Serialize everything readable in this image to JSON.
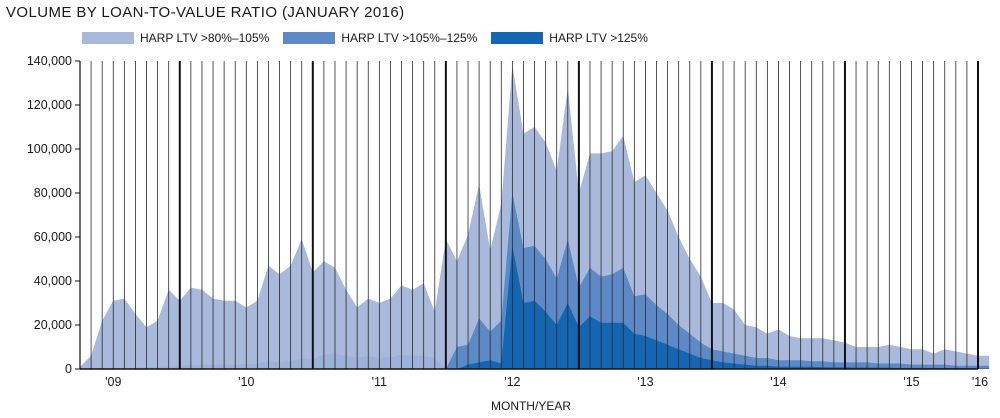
{
  "chart_data": {
    "type": "area",
    "title": "VOLUME BY LOAN-TO-VALUE RATIO (JANUARY 2016)",
    "xlabel": "MONTH/YEAR",
    "ylabel": "",
    "ylim": [
      0,
      140000
    ],
    "yticks": [
      0,
      20000,
      40000,
      60000,
      80000,
      100000,
      120000,
      140000
    ],
    "ytick_labels": [
      "0",
      "20,000",
      "40,000",
      "60,000",
      "80,000",
      "100,000",
      "120,000",
      "140,000"
    ],
    "x_start": "2009-04",
    "x_end": "2016-01",
    "year_ticks": [
      {
        "label": "'09",
        "month": "2009-07"
      },
      {
        "label": "'10",
        "month": "2010-07"
      },
      {
        "label": "'11",
        "month": "2011-07"
      },
      {
        "label": "'12",
        "month": "2012-07"
      },
      {
        "label": "'13",
        "month": "2013-07"
      },
      {
        "label": "'14",
        "month": "2014-07"
      },
      {
        "label": "'15",
        "month": "2015-07"
      },
      {
        "label": "'16",
        "month": "2016-01"
      }
    ],
    "year_boundaries": [
      "2010-01",
      "2011-01",
      "2012-01",
      "2013-01",
      "2014-01",
      "2015-01",
      "2016-01"
    ],
    "stacked": false,
    "grid": "vertical-monthly",
    "legend_position": "top-left",
    "series": [
      {
        "name": "HARP LTV >80%–105%",
        "color": "#a8b9dc",
        "values": [
          1000,
          6000,
          22000,
          31000,
          32000,
          25000,
          19000,
          22000,
          36000,
          31000,
          37000,
          36000,
          32000,
          31000,
          31000,
          28000,
          31000,
          47000,
          43000,
          47000,
          59000,
          44000,
          49000,
          46000,
          36000,
          28000,
          32000,
          30000,
          32000,
          38000,
          36000,
          39000,
          26000,
          59000,
          49000,
          61000,
          84000,
          54000,
          75000,
          138000,
          107000,
          110000,
          103000,
          90000,
          128000,
          80000,
          98000,
          98000,
          99000,
          106000,
          85000,
          88000,
          80000,
          72000,
          60000,
          50000,
          42000,
          30000,
          30000,
          27000,
          20000,
          19000,
          16000,
          18000,
          15000,
          14000,
          14000,
          14000,
          13000,
          12000,
          10000,
          10000,
          10000,
          11000,
          10000,
          9000,
          9000,
          7000,
          9000,
          8000,
          7000,
          6000,
          6000
        ]
      },
      {
        "name": "HARP LTV >105%–125%",
        "color": "#5d8ac6",
        "values": [
          0,
          0,
          0,
          0,
          0,
          0,
          0,
          0,
          0,
          0,
          0,
          0,
          0,
          0,
          0,
          0,
          0,
          0,
          0,
          0,
          0,
          0,
          0,
          0,
          0,
          0,
          0,
          0,
          0,
          0,
          0,
          0,
          0,
          0,
          10000,
          11000,
          23000,
          17000,
          22000,
          80000,
          55000,
          56000,
          50000,
          41000,
          59000,
          37000,
          46000,
          42000,
          43000,
          46000,
          33000,
          34000,
          29000,
          25000,
          20000,
          16000,
          12000,
          9000,
          8000,
          7000,
          6000,
          5000,
          5000,
          4000,
          4000,
          4000,
          3500,
          3500,
          3000,
          3000,
          3000,
          3000,
          2500,
          2500,
          2500,
          2000,
          2000,
          2000,
          2000,
          1500,
          1500,
          1500,
          1500
        ]
      },
      {
        "name": "HARP LTV >125%",
        "color": "#1466b3",
        "values": [
          0,
          0,
          0,
          0,
          0,
          0,
          0,
          0,
          0,
          0,
          0,
          0,
          0,
          0,
          0,
          0,
          0,
          0,
          0,
          0,
          0,
          0,
          0,
          0,
          0,
          0,
          0,
          0,
          0,
          0,
          0,
          0,
          0,
          0,
          0,
          2000,
          3000,
          4000,
          2500,
          56000,
          30000,
          31000,
          26000,
          20000,
          30000,
          19000,
          24000,
          21000,
          21000,
          21000,
          16000,
          15000,
          13000,
          11000,
          9000,
          7000,
          5000,
          4000,
          3000,
          2500,
          2000,
          1500,
          1500,
          1000,
          1000,
          1000,
          1000,
          800,
          800,
          800,
          700,
          700,
          600,
          600,
          500,
          500,
          500,
          400,
          400,
          400,
          300,
          300,
          300
        ]
      }
    ],
    "baseline_series": {
      "color": "#9db2d8",
      "values": [
        500,
        500,
        500,
        500,
        500,
        500,
        800,
        1000,
        1500,
        1500,
        1800,
        2000,
        2000,
        2200,
        2000,
        2200,
        2500,
        3500,
        3000,
        3500,
        5000,
        4500,
        6500,
        7000,
        6000,
        5000,
        6000,
        5000,
        5500,
        6500,
        6000,
        6000,
        5000,
        0,
        0,
        0,
        0,
        0,
        0,
        0,
        0,
        0,
        0,
        0,
        0,
        0,
        0,
        0,
        0,
        0,
        0,
        0,
        0,
        0,
        0,
        0,
        0,
        0,
        0,
        0,
        0,
        0,
        0,
        0,
        0,
        0,
        0,
        0,
        0,
        0,
        0,
        0,
        0,
        0,
        0,
        0,
        0,
        0,
        0,
        0,
        0,
        0,
        0
      ]
    }
  }
}
